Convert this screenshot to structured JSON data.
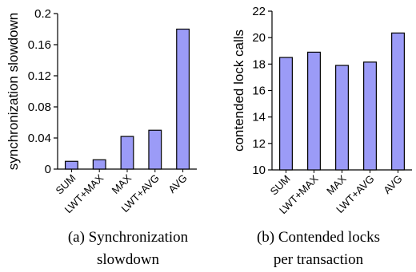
{
  "chart_data": [
    {
      "type": "bar",
      "categories": [
        "SUM",
        "LWT+MAX",
        "MAX",
        "LWT+AVG",
        "AVG"
      ],
      "values": [
        0.01,
        0.012,
        0.042,
        0.05,
        0.18
      ],
      "ylabel": "synchronization slowdown",
      "xlabel": "",
      "ylim": [
        0,
        0.2
      ],
      "yticks": [
        "0",
        "0.04",
        "0.08",
        "0.12",
        "0.16",
        "0.2"
      ],
      "grid": false,
      "caption_lines": [
        "(a) Synchronization",
        "slowdown"
      ]
    },
    {
      "type": "bar",
      "categories": [
        "SUM",
        "LWT+MAX",
        "MAX",
        "LWT+AVG",
        "AVG"
      ],
      "values": [
        18.5,
        18.9,
        17.9,
        18.15,
        20.35
      ],
      "ylabel": "contended lock calls",
      "xlabel": "",
      "ylim": [
        10,
        22
      ],
      "yticks": [
        "10",
        "12",
        "14",
        "16",
        "18",
        "20",
        "22"
      ],
      "grid": false,
      "caption_lines": [
        "(b) Contended locks",
        "per transaction"
      ]
    }
  ],
  "colors": {
    "bar_fill": "#9b9bf7",
    "bar_stroke": "#000000",
    "axis": "#000000"
  }
}
